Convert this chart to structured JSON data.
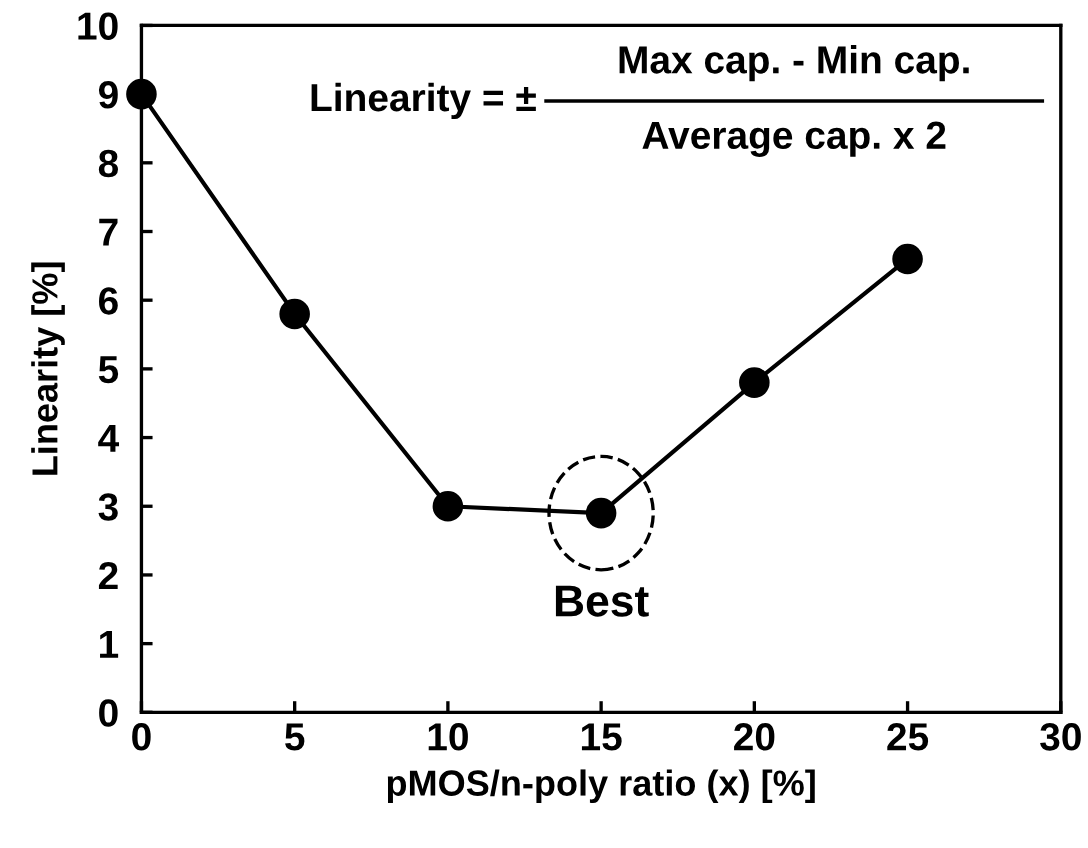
{
  "chart_data": {
    "type": "line",
    "xlabel": "pMOS/n-poly ratio (x) [%]",
    "ylabel": "Linearity [%]",
    "x": [
      0,
      5,
      10,
      15,
      20,
      25
    ],
    "series": [
      {
        "color": "#000000",
        "values": [
          9.0,
          5.8,
          3.0,
          2.9,
          4.8,
          6.6
        ]
      }
    ],
    "marker": "circle",
    "line_style": "solid",
    "xlim": [
      0,
      30
    ],
    "xticks": [
      0,
      5,
      10,
      15,
      20,
      25,
      30
    ],
    "ylim": [
      0,
      10
    ],
    "yticks": [
      0,
      1,
      2,
      3,
      4,
      5,
      6,
      7,
      8,
      9,
      10
    ],
    "grid": false,
    "annotations": [
      "Linearity = ±",
      "Max cap. - Min cap.",
      "Average cap. x 2",
      {
        "text": "Best",
        "x": 15,
        "y": 2.9
      }
    ]
  }
}
